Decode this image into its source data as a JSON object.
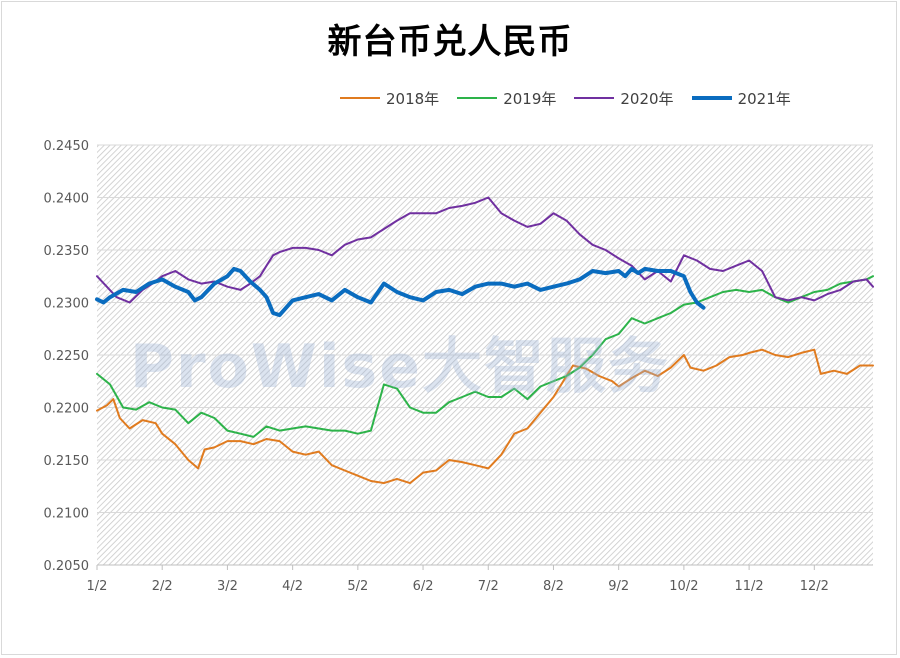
{
  "chart_data": {
    "type": "line",
    "title": "新台币兑人民币",
    "xlabel": "",
    "ylabel": "",
    "x_ticks": [
      "1/2",
      "2/2",
      "3/2",
      "4/2",
      "5/2",
      "6/2",
      "7/2",
      "8/2",
      "9/2",
      "10/2",
      "11/2",
      "12/2"
    ],
    "y_ticks": [
      "0.2450",
      "0.2400",
      "0.2350",
      "0.2300",
      "0.2250",
      "0.2200",
      "0.2150",
      "0.2100",
      "0.2050"
    ],
    "ylim": [
      0.205,
      0.245
    ],
    "x_unit": "month index (1 = Jan 2, 12 = Dec 2)",
    "xlim": [
      1,
      12.9
    ],
    "grid": true,
    "legend_position": "top",
    "series": [
      {
        "name": "2018年",
        "color": "#e07b1f",
        "x": [
          1.0,
          1.15,
          1.25,
          1.35,
          1.5,
          1.7,
          1.9,
          2.0,
          2.2,
          2.4,
          2.55,
          2.65,
          2.8,
          3.0,
          3.2,
          3.4,
          3.6,
          3.8,
          4.0,
          4.2,
          4.4,
          4.6,
          4.8,
          5.0,
          5.2,
          5.4,
          5.6,
          5.8,
          6.0,
          6.2,
          6.4,
          6.6,
          6.8,
          7.0,
          7.2,
          7.4,
          7.6,
          7.8,
          8.0,
          8.15,
          8.3,
          8.5,
          8.7,
          8.9,
          9.0,
          9.2,
          9.4,
          9.6,
          9.8,
          10.0,
          10.1,
          10.3,
          10.5,
          10.7,
          10.9,
          11.0,
          11.2,
          11.4,
          11.6,
          11.8,
          12.0,
          12.1,
          12.3,
          12.5,
          12.7,
          12.9
        ],
        "values": [
          0.2197,
          0.2202,
          0.2208,
          0.219,
          0.218,
          0.2188,
          0.2185,
          0.2175,
          0.2165,
          0.215,
          0.2142,
          0.216,
          0.2162,
          0.2168,
          0.2168,
          0.2165,
          0.217,
          0.2168,
          0.2158,
          0.2155,
          0.2158,
          0.2145,
          0.214,
          0.2135,
          0.213,
          0.2128,
          0.2132,
          0.2128,
          0.2138,
          0.214,
          0.215,
          0.2148,
          0.2145,
          0.2142,
          0.2155,
          0.2175,
          0.218,
          0.2195,
          0.221,
          0.2225,
          0.224,
          0.2237,
          0.223,
          0.2225,
          0.222,
          0.2228,
          0.2235,
          0.223,
          0.2238,
          0.225,
          0.2238,
          0.2235,
          0.224,
          0.2248,
          0.225,
          0.2252,
          0.2255,
          0.225,
          0.2248,
          0.2252,
          0.2255,
          0.2232,
          0.2235,
          0.2232,
          0.224,
          0.224
        ]
      },
      {
        "name": "2019年",
        "color": "#2db34a",
        "x": [
          1.0,
          1.2,
          1.4,
          1.6,
          1.8,
          2.0,
          2.2,
          2.4,
          2.6,
          2.8,
          3.0,
          3.2,
          3.4,
          3.6,
          3.8,
          4.0,
          4.2,
          4.4,
          4.6,
          4.8,
          5.0,
          5.2,
          5.4,
          5.6,
          5.8,
          6.0,
          6.2,
          6.4,
          6.6,
          6.8,
          7.0,
          7.2,
          7.4,
          7.6,
          7.8,
          8.0,
          8.2,
          8.4,
          8.6,
          8.8,
          9.0,
          9.2,
          9.4,
          9.6,
          9.8,
          10.0,
          10.2,
          10.4,
          10.6,
          10.8,
          11.0,
          11.2,
          11.4,
          11.6,
          11.8,
          12.0,
          12.2,
          12.4,
          12.6,
          12.8,
          12.9
        ],
        "values": [
          0.2232,
          0.2222,
          0.22,
          0.2198,
          0.2205,
          0.22,
          0.2198,
          0.2185,
          0.2195,
          0.219,
          0.2178,
          0.2175,
          0.2172,
          0.2182,
          0.2178,
          0.218,
          0.2182,
          0.218,
          0.2178,
          0.2178,
          0.2175,
          0.2178,
          0.2222,
          0.2218,
          0.22,
          0.2195,
          0.2195,
          0.2205,
          0.221,
          0.2215,
          0.221,
          0.221,
          0.2218,
          0.2208,
          0.222,
          0.2225,
          0.223,
          0.2238,
          0.225,
          0.2265,
          0.227,
          0.2285,
          0.228,
          0.2285,
          0.229,
          0.2298,
          0.23,
          0.2305,
          0.231,
          0.2312,
          0.231,
          0.2312,
          0.2305,
          0.23,
          0.2305,
          0.231,
          0.2312,
          0.2318,
          0.232,
          0.2322,
          0.2325
        ]
      },
      {
        "name": "2020年",
        "color": "#7030a0",
        "x": [
          1.0,
          1.15,
          1.3,
          1.5,
          1.7,
          1.85,
          2.0,
          2.2,
          2.4,
          2.6,
          2.8,
          3.0,
          3.2,
          3.35,
          3.5,
          3.6,
          3.7,
          3.8,
          4.0,
          4.2,
          4.4,
          4.6,
          4.8,
          5.0,
          5.2,
          5.4,
          5.6,
          5.8,
          6.0,
          6.2,
          6.4,
          6.6,
          6.8,
          7.0,
          7.2,
          7.4,
          7.6,
          7.8,
          8.0,
          8.2,
          8.4,
          8.6,
          8.8,
          9.0,
          9.2,
          9.4,
          9.6,
          9.8,
          10.0,
          10.2,
          10.4,
          10.6,
          10.8,
          11.0,
          11.2,
          11.4,
          11.6,
          11.8,
          12.0,
          12.2,
          12.4,
          12.6,
          12.8,
          12.9
        ],
        "values": [
          0.2325,
          0.2315,
          0.2305,
          0.23,
          0.2312,
          0.2318,
          0.2325,
          0.233,
          0.2322,
          0.2318,
          0.232,
          0.2315,
          0.2312,
          0.2318,
          0.2325,
          0.2335,
          0.2345,
          0.2348,
          0.2352,
          0.2352,
          0.235,
          0.2345,
          0.2355,
          0.236,
          0.2362,
          0.237,
          0.2378,
          0.2385,
          0.2385,
          0.2385,
          0.239,
          0.2392,
          0.2395,
          0.24,
          0.2385,
          0.2378,
          0.2372,
          0.2375,
          0.2385,
          0.2378,
          0.2365,
          0.2355,
          0.235,
          0.2342,
          0.2335,
          0.2322,
          0.233,
          0.232,
          0.2345,
          0.234,
          0.2332,
          0.233,
          0.2335,
          0.234,
          0.233,
          0.2305,
          0.2302,
          0.2305,
          0.2302,
          0.2308,
          0.2312,
          0.232,
          0.2322,
          0.2315
        ]
      },
      {
        "name": "2021年",
        "color": "#0a6cbf",
        "x": [
          1.0,
          1.1,
          1.2,
          1.4,
          1.6,
          1.8,
          2.0,
          2.2,
          2.4,
          2.5,
          2.6,
          2.8,
          3.0,
          3.1,
          3.2,
          3.35,
          3.5,
          3.6,
          3.7,
          3.8,
          4.0,
          4.2,
          4.4,
          4.6,
          4.8,
          5.0,
          5.2,
          5.4,
          5.6,
          5.8,
          6.0,
          6.2,
          6.4,
          6.6,
          6.8,
          7.0,
          7.2,
          7.4,
          7.6,
          7.8,
          8.0,
          8.2,
          8.4,
          8.6,
          8.8,
          9.0,
          9.1,
          9.2,
          9.3,
          9.4,
          9.6,
          9.8,
          10.0,
          10.1,
          10.2,
          10.3
        ],
        "values": [
          0.2303,
          0.23,
          0.2305,
          0.2312,
          0.231,
          0.2318,
          0.2322,
          0.2315,
          0.231,
          0.2302,
          0.2305,
          0.2318,
          0.2325,
          0.2332,
          0.233,
          0.232,
          0.2312,
          0.2305,
          0.229,
          0.2288,
          0.2302,
          0.2305,
          0.2308,
          0.2302,
          0.2312,
          0.2305,
          0.23,
          0.2318,
          0.231,
          0.2305,
          0.2302,
          0.231,
          0.2312,
          0.2308,
          0.2315,
          0.2318,
          0.2318,
          0.2315,
          0.2318,
          0.2312,
          0.2315,
          0.2318,
          0.2322,
          0.233,
          0.2328,
          0.233,
          0.2325,
          0.2332,
          0.2328,
          0.2332,
          0.233,
          0.233,
          0.2325,
          0.231,
          0.23,
          0.2295
        ]
      }
    ]
  },
  "watermark": "ProWise大智服务"
}
